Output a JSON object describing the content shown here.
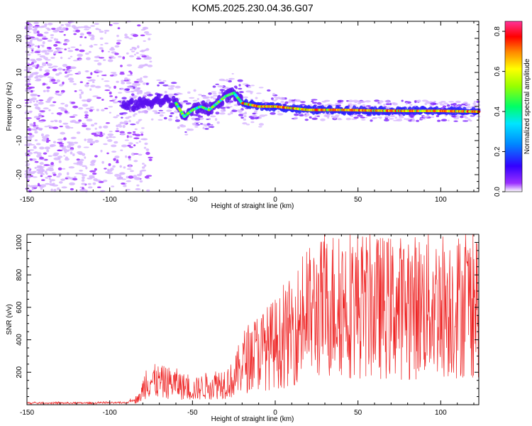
{
  "title": "KOM5.2025.230.04.36.G07",
  "chart_data": [
    {
      "type": "heatmap",
      "xlabel": "Height of straight line (km)",
      "ylabel": "Frequency (Hz)",
      "xlim": [
        -150,
        123
      ],
      "ylim": [
        -25,
        25
      ],
      "xticks": [
        -150,
        -100,
        -50,
        0,
        50,
        100
      ],
      "yticks": [
        -20,
        -10,
        0,
        10,
        20
      ],
      "colorbar": {
        "label": "Normalized spectral amplitude",
        "range": [
          0,
          0.85
        ],
        "ticks": [
          "0.0",
          "0.2",
          "0.4",
          "0.6",
          "0.8"
        ],
        "tick_values": [
          0.0,
          0.2,
          0.4,
          0.6,
          0.8
        ]
      },
      "ridge": {
        "x": [
          -90,
          -80,
          -70,
          -60,
          -55,
          -50,
          -45,
          -40,
          -35,
          -30,
          -25,
          -20,
          -10,
          0,
          10,
          20,
          40,
          60,
          80,
          100,
          123
        ],
        "freq": [
          0,
          1,
          2,
          1,
          -3,
          -1,
          0,
          -1,
          1,
          3,
          4,
          1,
          0,
          0,
          -0.5,
          -1,
          -1,
          -1.2,
          -1.3,
          -1.3,
          -1.5
        ]
      }
    },
    {
      "type": "line",
      "xlabel": "Height of straight line (km)",
      "ylabel": "SNR (v/v)",
      "xlim": [
        -150,
        123
      ],
      "ylim": [
        0,
        1050
      ],
      "xticks": [
        -150,
        -100,
        -50,
        0,
        50,
        100
      ],
      "yticks": [
        200,
        400,
        600,
        800,
        1000
      ],
      "color": "#ee2222",
      "envelope": {
        "x": [
          -150,
          -110,
          -90,
          -82,
          -78,
          -70,
          -60,
          -50,
          -40,
          -30,
          -25,
          -20,
          -15,
          -10,
          -5,
          0,
          5,
          10,
          20,
          30,
          40,
          50,
          60,
          70,
          80,
          90,
          100,
          110,
          123
        ],
        "y": [
          10,
          10,
          12,
          40,
          150,
          140,
          130,
          90,
          120,
          140,
          150,
          260,
          300,
          330,
          350,
          380,
          390,
          460,
          560,
          600,
          640,
          620,
          600,
          600,
          600,
          610,
          620,
          610,
          640
        ]
      }
    }
  ]
}
